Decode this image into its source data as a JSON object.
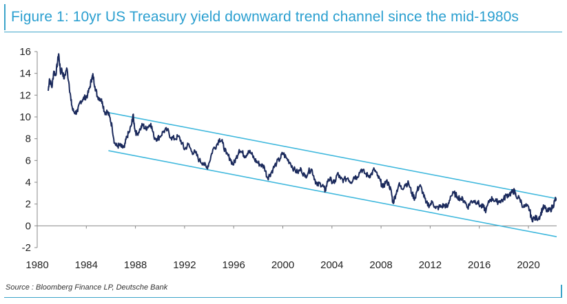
{
  "header": {
    "title": "Figure 1: 10yr US Treasury yield downward trend channel since the mid-1980s"
  },
  "footer": {
    "source": "Source : Bloomberg Finance LP, Deutsche Bank"
  },
  "chart_data": {
    "type": "line",
    "title": "Figure 1: 10yr US Treasury yield downward trend channel since the mid-1980s",
    "xlabel": "",
    "ylabel": "",
    "xlim": [
      1980,
      2022.3
    ],
    "ylim": [
      -2,
      16
    ],
    "x_ticks": [
      1980,
      1984,
      1988,
      1992,
      1996,
      2000,
      2004,
      2008,
      2012,
      2016,
      2020
    ],
    "y_ticks": [
      -2,
      0,
      2,
      4,
      6,
      8,
      10,
      12,
      14,
      16
    ],
    "grid": false,
    "legend": "none",
    "colors": {
      "series": "#1b2a5c",
      "channel": "#3fb8dd",
      "axis": "#888888"
    },
    "series": [
      {
        "values": [
          [
            1980.9,
            12.4
          ],
          [
            1981.0,
            13.5
          ],
          [
            1981.2,
            12.7
          ],
          [
            1981.35,
            14.2
          ],
          [
            1981.5,
            13.8
          ],
          [
            1981.65,
            15.0
          ],
          [
            1981.75,
            15.8
          ],
          [
            1981.9,
            14.0
          ],
          [
            1982.0,
            14.4
          ],
          [
            1982.2,
            13.5
          ],
          [
            1982.4,
            14.5
          ],
          [
            1982.6,
            13.0
          ],
          [
            1982.75,
            11.5
          ],
          [
            1982.9,
            10.6
          ],
          [
            1983.1,
            10.4
          ],
          [
            1983.3,
            10.5
          ],
          [
            1983.5,
            11.4
          ],
          [
            1983.7,
            11.6
          ],
          [
            1983.9,
            11.8
          ],
          [
            1984.1,
            12.0
          ],
          [
            1984.3,
            12.8
          ],
          [
            1984.45,
            13.6
          ],
          [
            1984.55,
            13.8
          ],
          [
            1984.7,
            12.8
          ],
          [
            1984.9,
            11.9
          ],
          [
            1985.1,
            11.7
          ],
          [
            1985.3,
            11.4
          ],
          [
            1985.5,
            10.4
          ],
          [
            1985.7,
            10.5
          ],
          [
            1985.9,
            10.0
          ],
          [
            1986.1,
            9.1
          ],
          [
            1986.3,
            7.6
          ],
          [
            1986.5,
            7.3
          ],
          [
            1986.7,
            7.4
          ],
          [
            1986.9,
            7.2
          ],
          [
            1987.1,
            7.2
          ],
          [
            1987.3,
            8.2
          ],
          [
            1987.5,
            8.6
          ],
          [
            1987.7,
            9.4
          ],
          [
            1987.8,
            10.2
          ],
          [
            1987.95,
            8.9
          ],
          [
            1988.1,
            8.4
          ],
          [
            1988.4,
            8.9
          ],
          [
            1988.6,
            9.3
          ],
          [
            1988.8,
            8.9
          ],
          [
            1989.0,
            9.1
          ],
          [
            1989.25,
            9.4
          ],
          [
            1989.5,
            8.2
          ],
          [
            1989.75,
            8.0
          ],
          [
            1990.0,
            8.2
          ],
          [
            1990.3,
            8.7
          ],
          [
            1990.6,
            8.8
          ],
          [
            1990.9,
            8.1
          ],
          [
            1991.2,
            8.0
          ],
          [
            1991.5,
            8.2
          ],
          [
            1991.8,
            7.6
          ],
          [
            1992.0,
            7.0
          ],
          [
            1992.3,
            7.5
          ],
          [
            1992.6,
            6.8
          ],
          [
            1992.9,
            6.7
          ],
          [
            1993.2,
            6.0
          ],
          [
            1993.5,
            5.8
          ],
          [
            1993.8,
            5.3
          ],
          [
            1994.0,
            5.8
          ],
          [
            1994.3,
            7.0
          ],
          [
            1994.6,
            7.4
          ],
          [
            1994.85,
            8.0
          ],
          [
            1995.1,
            7.6
          ],
          [
            1995.4,
            6.6
          ],
          [
            1995.7,
            6.2
          ],
          [
            1995.95,
            5.6
          ],
          [
            1996.2,
            6.2
          ],
          [
            1996.45,
            7.0
          ],
          [
            1996.7,
            6.7
          ],
          [
            1996.95,
            6.4
          ],
          [
            1997.2,
            6.9
          ],
          [
            1997.45,
            6.6
          ],
          [
            1997.7,
            6.1
          ],
          [
            1997.95,
            5.8
          ],
          [
            1998.2,
            5.6
          ],
          [
            1998.5,
            5.4
          ],
          [
            1998.75,
            4.4
          ],
          [
            1998.95,
            4.7
          ],
          [
            1999.2,
            5.2
          ],
          [
            1999.5,
            5.8
          ],
          [
            1999.8,
            6.2
          ],
          [
            2000.0,
            6.7
          ],
          [
            2000.3,
            6.2
          ],
          [
            2000.6,
            5.8
          ],
          [
            2000.9,
            5.2
          ],
          [
            2001.2,
            4.9
          ],
          [
            2001.5,
            5.2
          ],
          [
            2001.8,
            4.5
          ],
          [
            2002.1,
            5.0
          ],
          [
            2002.35,
            5.2
          ],
          [
            2002.6,
            4.3
          ],
          [
            2002.8,
            3.7
          ],
          [
            2003.05,
            3.9
          ],
          [
            2003.3,
            3.6
          ],
          [
            2003.45,
            3.2
          ],
          [
            2003.7,
            4.3
          ],
          [
            2003.95,
            4.2
          ],
          [
            2004.2,
            3.9
          ],
          [
            2004.45,
            4.8
          ],
          [
            2004.7,
            4.3
          ],
          [
            2004.95,
            4.2
          ],
          [
            2005.3,
            4.4
          ],
          [
            2005.55,
            4.0
          ],
          [
            2005.8,
            4.5
          ],
          [
            2006.05,
            4.5
          ],
          [
            2006.4,
            5.2
          ],
          [
            2006.7,
            4.8
          ],
          [
            2006.95,
            4.6
          ],
          [
            2007.2,
            4.7
          ],
          [
            2007.45,
            5.2
          ],
          [
            2007.7,
            4.6
          ],
          [
            2007.95,
            4.1
          ],
          [
            2008.15,
            3.5
          ],
          [
            2008.4,
            4.1
          ],
          [
            2008.65,
            3.8
          ],
          [
            2008.85,
            3.0
          ],
          [
            2008.97,
            2.1
          ],
          [
            2009.2,
            2.9
          ],
          [
            2009.45,
            3.8
          ],
          [
            2009.7,
            3.4
          ],
          [
            2009.95,
            3.8
          ],
          [
            2010.25,
            3.9
          ],
          [
            2010.5,
            3.0
          ],
          [
            2010.75,
            2.5
          ],
          [
            2010.95,
            3.3
          ],
          [
            2011.15,
            3.7
          ],
          [
            2011.4,
            3.1
          ],
          [
            2011.65,
            2.1
          ],
          [
            2011.95,
            1.9
          ],
          [
            2012.2,
            2.2
          ],
          [
            2012.45,
            1.6
          ],
          [
            2012.7,
            1.7
          ],
          [
            2012.95,
            1.8
          ],
          [
            2013.2,
            1.9
          ],
          [
            2013.4,
            1.7
          ],
          [
            2013.65,
            2.7
          ],
          [
            2013.95,
            3.0
          ],
          [
            2014.2,
            2.7
          ],
          [
            2014.5,
            2.5
          ],
          [
            2014.8,
            2.3
          ],
          [
            2015.05,
            1.7
          ],
          [
            2015.3,
            2.2
          ],
          [
            2015.55,
            2.3
          ],
          [
            2015.85,
            2.2
          ],
          [
            2016.1,
            1.8
          ],
          [
            2016.35,
            1.7
          ],
          [
            2016.55,
            1.4
          ],
          [
            2016.85,
            2.4
          ],
          [
            2017.1,
            2.5
          ],
          [
            2017.4,
            2.2
          ],
          [
            2017.7,
            2.3
          ],
          [
            2017.95,
            2.4
          ],
          [
            2018.2,
            2.8
          ],
          [
            2018.45,
            2.9
          ],
          [
            2018.7,
            3.1
          ],
          [
            2018.85,
            3.2
          ],
          [
            2019.0,
            2.7
          ],
          [
            2019.3,
            2.5
          ],
          [
            2019.6,
            1.7
          ],
          [
            2019.85,
            1.8
          ],
          [
            2020.1,
            1.5
          ],
          [
            2020.25,
            0.6
          ],
          [
            2020.45,
            0.7
          ],
          [
            2020.7,
            0.7
          ],
          [
            2020.95,
            0.9
          ],
          [
            2021.15,
            1.6
          ],
          [
            2021.3,
            1.7
          ],
          [
            2021.55,
            1.3
          ],
          [
            2021.8,
            1.5
          ],
          [
            2022.0,
            1.8
          ],
          [
            2022.15,
            2.3
          ],
          [
            2022.25,
            2.5
          ]
        ]
      }
    ],
    "channel_lines": [
      {
        "start": [
          1985.8,
          10.4
        ],
        "end": [
          2022.3,
          2.5
        ]
      },
      {
        "start": [
          1985.8,
          6.9
        ],
        "end": [
          2022.3,
          -1.0
        ]
      }
    ]
  }
}
